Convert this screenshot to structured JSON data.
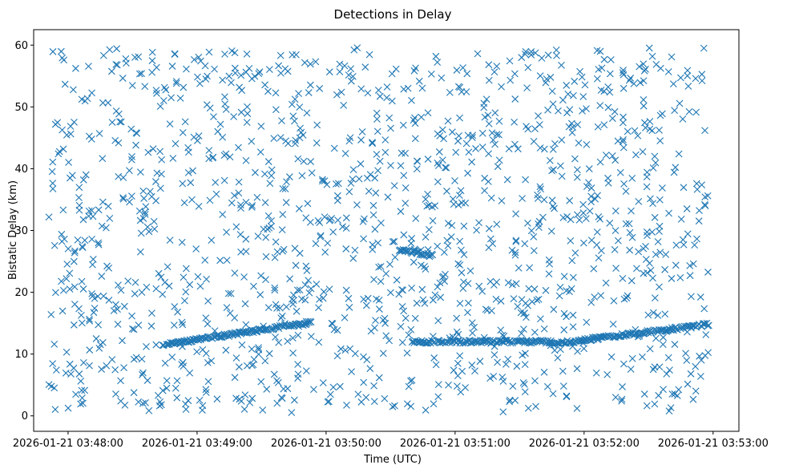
{
  "chart_data": {
    "type": "scatter",
    "title": "Detections in Delay",
    "xlabel": "Time (UTC)",
    "ylabel": "Bistatic Delay (km)",
    "marker": "x",
    "color": "#1f77b4",
    "grid": false,
    "legend": "none",
    "x_start": "2026-01-21 03:47:51",
    "x_end": "2026-01-21 03:52:58",
    "xlim": [
      "2026-01-21 03:47:44",
      "2026-01-21 03:53:12"
    ],
    "ylim": [
      -2.5,
      62.5
    ],
    "x_ticks": [
      "2026-01-21 03:48:00",
      "2026-01-21 03:49:00",
      "2026-01-21 03:50:00",
      "2026-01-21 03:51:00",
      "2026-01-21 03:52:00",
      "2026-01-21 03:53:00"
    ],
    "y_ticks": [
      0,
      10,
      20,
      30,
      40,
      50,
      60
    ],
    "noise": {
      "count": 1400,
      "y_range": [
        0.5,
        59.8
      ]
    },
    "tracks": [
      {
        "x_start": "2026-01-21 03:48:44",
        "x_end": "2026-01-21 03:49:53",
        "y_start": 11.5,
        "y_end": 15.1
      },
      {
        "x_start": "2026-01-21 03:50:34",
        "x_end": "2026-01-21 03:50:50",
        "y_start": 26.8,
        "y_end": 26.0
      },
      {
        "x_start": "2026-01-21 03:51:44",
        "x_end": "2026-01-21 03:52:58",
        "y_start": 11.6,
        "y_end": 14.8
      },
      {
        "x_start": "2026-01-21 03:50:40",
        "x_end": "2026-01-21 03:51:45",
        "y_start": 12.0,
        "y_end": 12.0
      }
    ]
  }
}
